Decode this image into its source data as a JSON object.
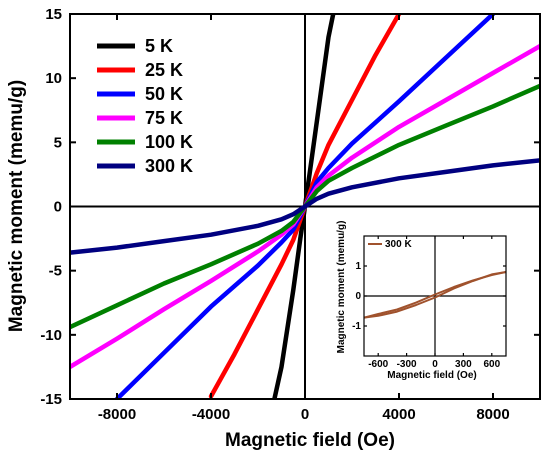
{
  "chart_data": [
    {
      "type": "line",
      "title": "",
      "xlabel": "Magnetic field (Oe)",
      "ylabel": "Magnetic moment (memu/g)",
      "xlim": [
        -10000,
        10000
      ],
      "ylim": [
        -15,
        15
      ],
      "xticks": [
        -8000,
        -4000,
        0,
        4000,
        8000
      ],
      "xtick_labels": [
        "-8000",
        "-4000",
        "0",
        "4000",
        "8000"
      ],
      "yticks": [
        -15,
        -10,
        -5,
        0,
        5,
        10,
        15
      ],
      "ytick_labels": [
        "-15",
        "-10",
        "-5",
        "0",
        "5",
        "10",
        "15"
      ],
      "grid": false,
      "legend_position": "top-left",
      "series": [
        {
          "name": "5 K",
          "color": "#000000",
          "x": [
            -1300,
            -1000,
            -500,
            -200,
            0,
            200,
            500,
            1000,
            1200
          ],
          "y": [
            -15,
            -12.5,
            -6.5,
            -2.5,
            0,
            2.6,
            6.6,
            13.2,
            15
          ]
        },
        {
          "name": "25 K",
          "color": "#ff0000",
          "x": [
            -4000,
            -3000,
            -2000,
            -1000,
            -500,
            0,
            500,
            1000,
            2000,
            3000,
            4000
          ],
          "y": [
            -14.8,
            -11.5,
            -8.0,
            -4.5,
            -2.6,
            0,
            2.6,
            4.8,
            8.3,
            11.8,
            15
          ]
        },
        {
          "name": "50 K",
          "color": "#0000ff",
          "x": [
            -8000,
            -6000,
            -4000,
            -2000,
            -1000,
            -500,
            0,
            500,
            1000,
            2000,
            4000,
            6000,
            8000
          ],
          "y": [
            -15,
            -11.4,
            -7.8,
            -4.6,
            -2.8,
            -1.8,
            0,
            1.9,
            3.0,
            4.9,
            8.2,
            11.6,
            15
          ]
        },
        {
          "name": "75 K",
          "color": "#ff00ff",
          "x": [
            -10000,
            -8000,
            -6000,
            -4000,
            -2000,
            -1000,
            -500,
            0,
            500,
            1000,
            2000,
            4000,
            6000,
            8000,
            10000
          ],
          "y": [
            -12.5,
            -10.3,
            -8.0,
            -5.8,
            -3.5,
            -2.2,
            -1.4,
            0,
            1.5,
            2.4,
            3.8,
            6.2,
            8.3,
            10.4,
            12.5
          ]
        },
        {
          "name": "100 K",
          "color": "#008000",
          "x": [
            -10000,
            -8000,
            -6000,
            -4000,
            -2000,
            -1000,
            -500,
            0,
            500,
            1000,
            2000,
            4000,
            6000,
            8000,
            10000
          ],
          "y": [
            -9.4,
            -7.7,
            -6.0,
            -4.5,
            -2.9,
            -1.9,
            -1.2,
            0,
            1.2,
            2.0,
            3.0,
            4.8,
            6.3,
            7.8,
            9.4
          ]
        },
        {
          "name": "300 K",
          "color": "#000080",
          "x": [
            -10000,
            -8000,
            -6000,
            -4000,
            -2000,
            -1000,
            -500,
            0,
            500,
            1000,
            2000,
            4000,
            6000,
            8000,
            10000
          ],
          "y": [
            -3.6,
            -3.2,
            -2.7,
            -2.2,
            -1.5,
            -1.0,
            -0.6,
            0,
            0.6,
            1.0,
            1.5,
            2.2,
            2.7,
            3.2,
            3.6
          ]
        }
      ]
    },
    {
      "type": "line",
      "title": "",
      "xlabel": "Magnetic field (Oe)",
      "ylabel": "Magnetic moment (memu/g)",
      "xlim": [
        -750,
        750
      ],
      "ylim": [
        -2,
        2
      ],
      "xticks": [
        -600,
        -300,
        0,
        300,
        600
      ],
      "xtick_labels": [
        "-600",
        "-300",
        "0",
        "300",
        "600"
      ],
      "yticks": [
        -1,
        0,
        1
      ],
      "ytick_labels": [
        "-1",
        "0",
        "1"
      ],
      "grid": false,
      "legend_position": "top-left",
      "series": [
        {
          "name": "300 K",
          "color": "#a0522d",
          "x": [
            -750,
            -600,
            -400,
            -200,
            0,
            200,
            400,
            600,
            750
          ],
          "y": [
            -0.72,
            -0.6,
            -0.45,
            -0.22,
            0.05,
            0.3,
            0.52,
            0.7,
            0.8
          ]
        },
        {
          "name": "",
          "color": "#a0522d",
          "x": [
            750,
            600,
            400,
            200,
            0,
            -200,
            -400,
            -600,
            -750
          ],
          "y": [
            0.8,
            0.72,
            0.5,
            0.25,
            -0.05,
            -0.3,
            -0.52,
            -0.66,
            -0.72
          ]
        }
      ]
    }
  ]
}
